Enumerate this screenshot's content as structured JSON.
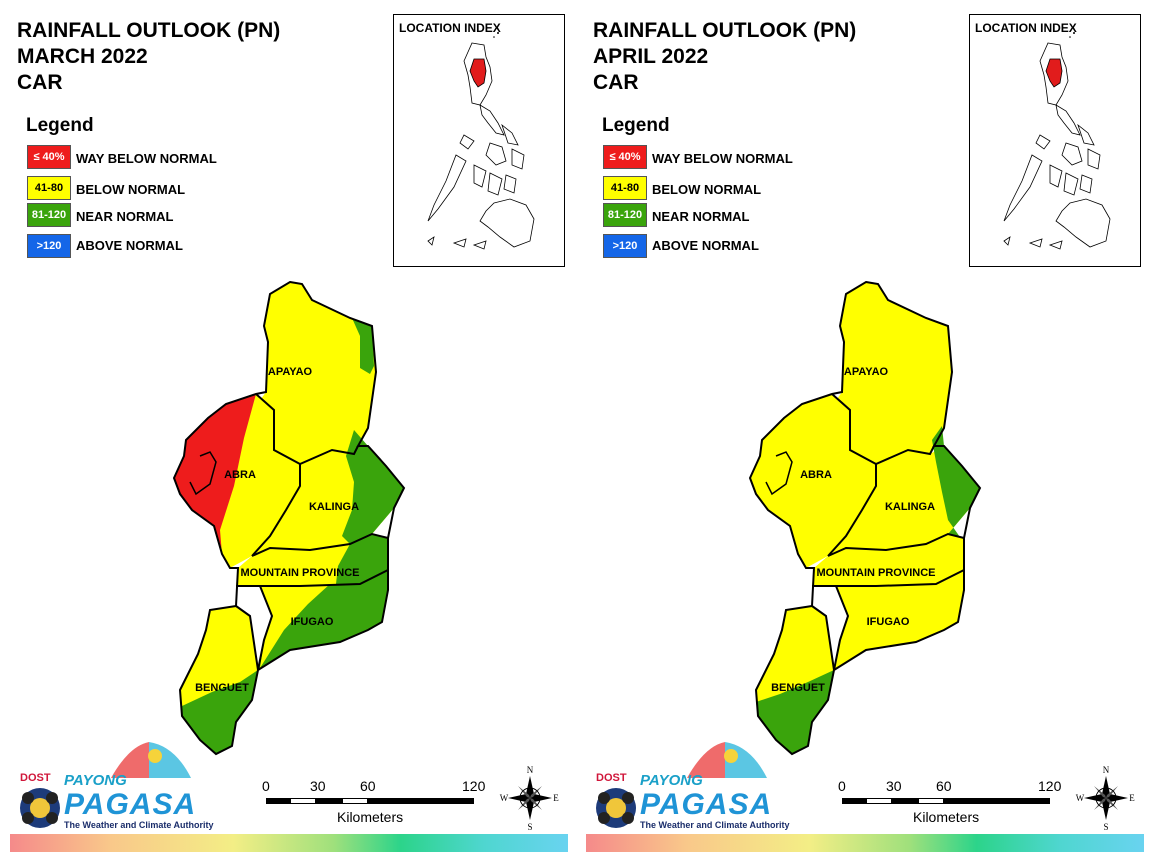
{
  "colors": {
    "way_below": "#ee1c1c",
    "below": "#ffff00",
    "near": "#3aa40c",
    "above": "#1466e8",
    "outline": "#000000",
    "inset_region": "#e11c1c"
  },
  "legend": {
    "title": "Legend",
    "items": [
      {
        "range": "≤ 40%",
        "label": "WAY BELOW NORMAL",
        "color": "#ee1c1c",
        "text_color": "#ffffff"
      },
      {
        "range": "41-80",
        "label": "BELOW NORMAL",
        "color": "#ffff00",
        "text_color": "#000000"
      },
      {
        "range": "81-120",
        "label": "NEAR NORMAL",
        "color": "#3aa40c",
        "text_color": "#ffffff"
      },
      {
        "range": ">120",
        "label": "ABOVE NORMAL",
        "color": "#1466e8",
        "text_color": "#ffffff"
      }
    ]
  },
  "inset": {
    "title": "LOCATION INDEX"
  },
  "scale": {
    "ticks": [
      "0",
      "30",
      "60",
      "120"
    ],
    "unit": "Kilometers"
  },
  "compass": {
    "n": "N",
    "s": "S",
    "e": "E",
    "w": "W"
  },
  "logo": {
    "dost": "DOST",
    "payong": "PAYONG",
    "pagasa": "PAGASA",
    "tagline": "The Weather and Climate Authority"
  },
  "maps": [
    {
      "title_line1": "RAINFALL OUTLOOK (PN)",
      "title_line2": "MARCH 2022",
      "title_line3": "CAR",
      "provinces": {
        "apayao": "APAYAO",
        "abra": "ABRA",
        "kalinga": "KALINGA",
        "mountain_province": "MOUNTAIN PROVINCE",
        "ifugao": "IFUGAO",
        "benguet": "BENGUET"
      }
    },
    {
      "title_line1": "RAINFALL OUTLOOK (PN)",
      "title_line2": "APRIL 2022",
      "title_line3": "CAR",
      "provinces": {
        "apayao": "APAYAO",
        "abra": "ABRA",
        "kalinga": "KALINGA",
        "mountain_province": "MOUNTAIN PROVINCE",
        "ifugao": "IFUGAO",
        "benguet": "BENGUET"
      }
    }
  ]
}
